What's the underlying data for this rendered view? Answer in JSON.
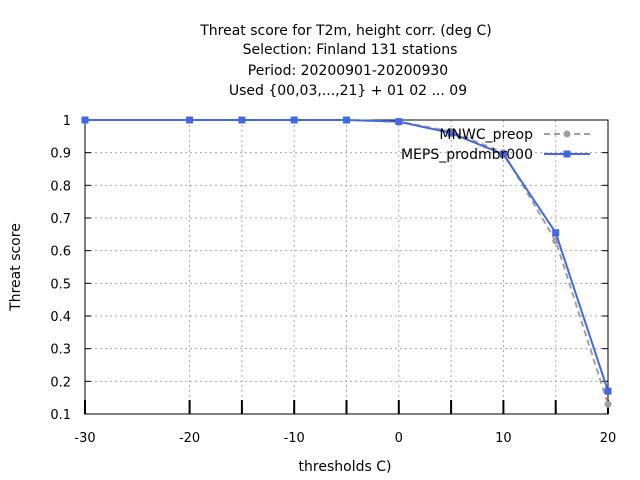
{
  "chart_data": {
    "type": "line",
    "title_lines": [
      "Threat score  for T2m, height corr. (deg C)",
      "Selection: Finland    131 stations",
      "Period: 20200901-20200930",
      "Used {00,03,...,21} + 01 02 ... 09"
    ],
    "xlabel": "thresholds C)",
    "ylabel": "Threat score",
    "xlim": [
      -30,
      20
    ],
    "ylim": [
      0.1,
      1.0
    ],
    "xticks": [
      -30,
      -20,
      -10,
      0,
      10,
      20
    ],
    "xtick_labels": [
      "-30",
      "-20",
      "-10",
      "0",
      "10",
      "20"
    ],
    "yticks": [
      0.1,
      0.2,
      0.3,
      0.4,
      0.5,
      0.6,
      0.7,
      0.8,
      0.9,
      1.0
    ],
    "ytick_labels": [
      "0.1",
      "0.2",
      "0.3",
      "0.4",
      "0.5",
      "0.6",
      "0.7",
      "0.8",
      "0.9",
      "1"
    ],
    "grid": true,
    "legend_position": "top-right",
    "x": [
      -30,
      -20,
      -15,
      -10,
      -5,
      0,
      5,
      10,
      15,
      20
    ],
    "series": [
      {
        "name": "MNWC_preop",
        "color": "#a0a0a0",
        "dashed": true,
        "marker": "circle",
        "values": [
          1.0,
          1.0,
          1.0,
          1.0,
          1.0,
          0.995,
          0.965,
          0.9,
          0.63,
          0.13
        ]
      },
      {
        "name": "MEPS_prodmbr000",
        "color": "#4169e1",
        "dashed": false,
        "marker": "square",
        "values": [
          1.0,
          1.0,
          1.0,
          1.0,
          1.0,
          0.995,
          0.96,
          0.895,
          0.655,
          0.17
        ]
      }
    ]
  }
}
